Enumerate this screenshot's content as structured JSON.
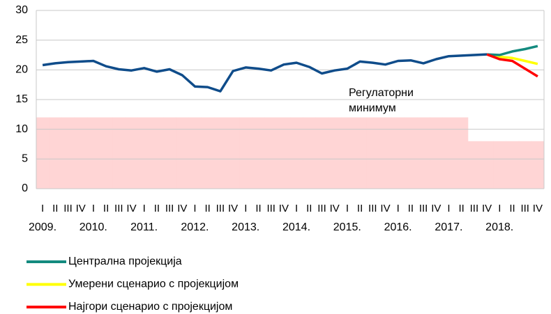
{
  "chart_data": {
    "type": "line",
    "categories": [
      "I",
      "II",
      "III",
      "IV",
      "I",
      "II",
      "III",
      "IV",
      "I",
      "II",
      "III",
      "IV",
      "I",
      "II",
      "III",
      "IV",
      "I",
      "II",
      "III",
      "IV",
      "I",
      "II",
      "III",
      "IV",
      "I",
      "II",
      "III",
      "IV",
      "I",
      "II",
      "III",
      "IV",
      "I",
      "II",
      "III",
      "IV",
      "I",
      "II",
      "III",
      "IV"
    ],
    "year_labels": [
      "2009.",
      "2010.",
      "2011.",
      "2012.",
      "2013.",
      "2014.",
      "2015.",
      "2016.",
      "2017.",
      "2018."
    ],
    "ylim": [
      0,
      30
    ],
    "yticks": [
      0,
      5,
      10,
      15,
      20,
      25,
      30
    ],
    "grid": true,
    "area": {
      "name": "Регулаторни минимум",
      "color": "#ffd5d5",
      "values": [
        12,
        12,
        12,
        12,
        12,
        12,
        12,
        12,
        12,
        12,
        12,
        12,
        12,
        12,
        12,
        12,
        12,
        12,
        12,
        12,
        12,
        12,
        12,
        12,
        12,
        12,
        12,
        12,
        12,
        12,
        12,
        12,
        12,
        12,
        8,
        8,
        8,
        8,
        8,
        8
      ]
    },
    "area_label": [
      "Регулаторни",
      "минимум"
    ],
    "series": [
      {
        "name": null,
        "color": "#0f4c8a",
        "values": [
          20.8,
          21.1,
          21.3,
          21.4,
          21.5,
          20.6,
          20.1,
          19.9,
          20.3,
          19.7,
          20.1,
          19.1,
          17.2,
          17.1,
          16.4,
          19.8,
          20.4,
          20.2,
          19.9,
          20.9,
          21.2,
          20.5,
          19.4,
          19.9,
          20.2,
          21.4,
          21.2,
          20.9,
          21.5,
          21.6,
          21.1,
          21.8,
          22.3,
          22.4,
          22.5,
          22.6,
          null,
          null,
          null,
          null
        ]
      },
      {
        "name": "Централна пројекција",
        "color": "#138a7f",
        "values": [
          null,
          null,
          null,
          null,
          null,
          null,
          null,
          null,
          null,
          null,
          null,
          null,
          null,
          null,
          null,
          null,
          null,
          null,
          null,
          null,
          null,
          null,
          null,
          null,
          null,
          null,
          null,
          null,
          null,
          null,
          null,
          null,
          null,
          null,
          null,
          22.6,
          22.5,
          23.1,
          23.5,
          24.0
        ]
      },
      {
        "name": "Умерени сценарио с пројекцијом",
        "color": "#ffff00",
        "values": [
          null,
          null,
          null,
          null,
          null,
          null,
          null,
          null,
          null,
          null,
          null,
          null,
          null,
          null,
          null,
          null,
          null,
          null,
          null,
          null,
          null,
          null,
          null,
          null,
          null,
          null,
          null,
          null,
          null,
          null,
          null,
          null,
          null,
          null,
          null,
          22.6,
          22.2,
          22.0,
          21.5,
          21.0
        ]
      },
      {
        "name": "Најгори сценарио с пројекцијом",
        "color": "#ff0000",
        "values": [
          null,
          null,
          null,
          null,
          null,
          null,
          null,
          null,
          null,
          null,
          null,
          null,
          null,
          null,
          null,
          null,
          null,
          null,
          null,
          null,
          null,
          null,
          null,
          null,
          null,
          null,
          null,
          null,
          null,
          null,
          null,
          null,
          null,
          null,
          null,
          22.6,
          21.8,
          21.5,
          20.2,
          18.9
        ]
      }
    ]
  }
}
